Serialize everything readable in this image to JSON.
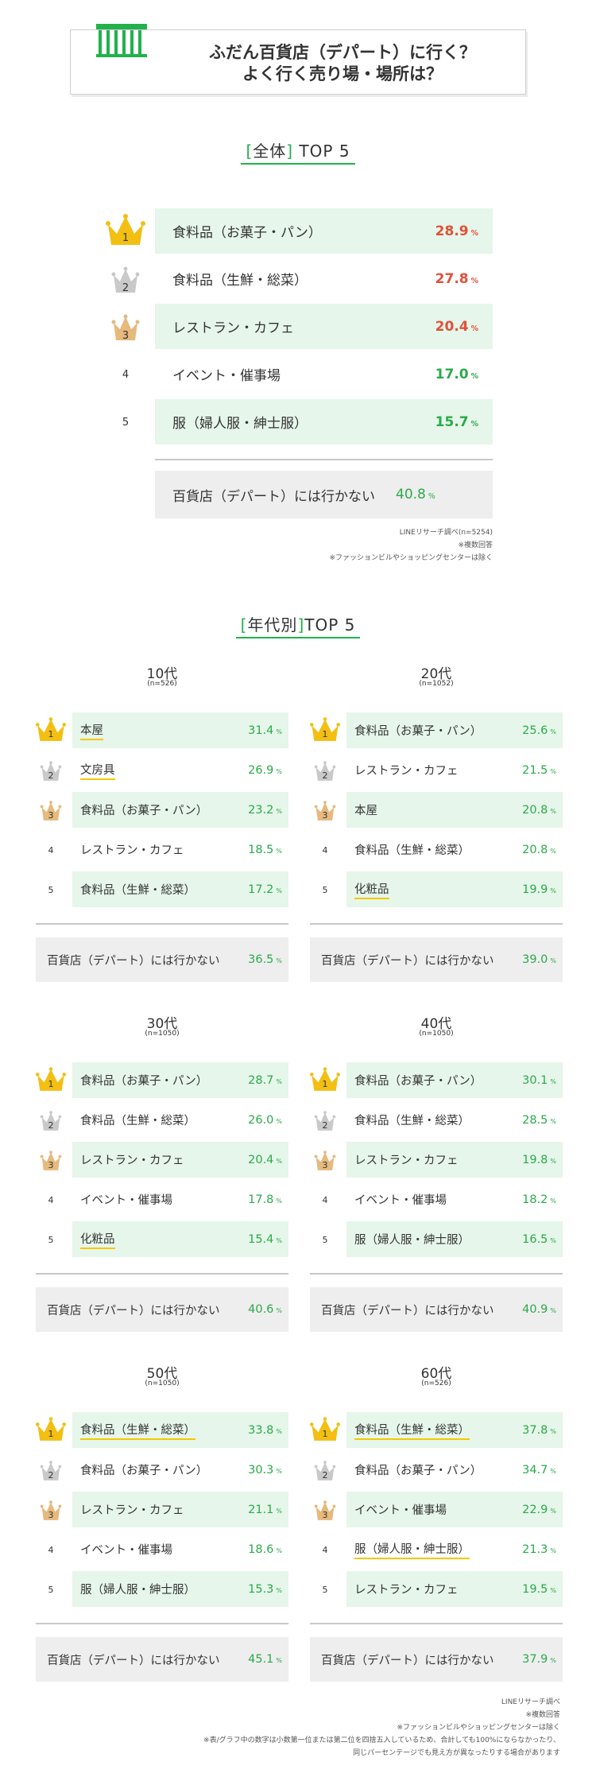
{
  "header": {
    "line1": "ふだん百貨店（デパート）に行く？",
    "line2": "よく行く売り場・場所は？"
  },
  "overall": {
    "bracket_left": "[",
    "heading": "全体",
    "bracket_right": "]",
    "suffix": " TOP 5",
    "rows": [
      {
        "rank": "1",
        "label": "食料品（お菓子・パン）",
        "value": "28.9",
        "unit": "%"
      },
      {
        "rank": "2",
        "label": "食料品（生鮮・総菜）",
        "value": "27.8",
        "unit": "%"
      },
      {
        "rank": "3",
        "label": "レストラン・カフェ",
        "value": "20.4",
        "unit": "%"
      },
      {
        "rank": "4",
        "label": "イベント・催事場",
        "value": "17.0",
        "unit": "%"
      },
      {
        "rank": "5",
        "label": "服（婦人服・紳士服）",
        "value": "15.7",
        "unit": "%"
      }
    ],
    "not_going": {
      "label": "百貨店（デパート）には行かない",
      "value": "40.8",
      "unit": "%"
    },
    "notes": [
      "LINEリサーチ調べ(n=5254)",
      "※複数回答",
      "※ファッションビルやショッピングセンターは除く"
    ]
  },
  "by_age": {
    "bracket_left": "[",
    "heading": "年代別",
    "bracket_right": "]",
    "suffix": "TOP 5",
    "groups": [
      {
        "title": "10代",
        "n": "(n=526)",
        "rows": [
          {
            "rank": "1",
            "label": "本屋",
            "value": "31.4",
            "unit": "%"
          },
          {
            "rank": "2",
            "label": "文房具",
            "value": "26.9",
            "unit": "%"
          },
          {
            "rank": "3",
            "label": "食料品（お菓子・パン）",
            "value": "23.2",
            "unit": "%"
          },
          {
            "rank": "4",
            "label": "レストラン・カフェ",
            "value": "18.5",
            "unit": "%"
          },
          {
            "rank": "5",
            "label": "食料品（生鮮・総菜）",
            "value": "17.2",
            "unit": "%"
          }
        ],
        "not_going": {
          "label": "百貨店（デパート）には行かない",
          "value": "36.5",
          "unit": "%"
        }
      },
      {
        "title": "20代",
        "n": "(n=1052)",
        "rows": [
          {
            "rank": "1",
            "label": "食料品（お菓子・パン）",
            "value": "25.6",
            "unit": "%"
          },
          {
            "rank": "2",
            "label": "レストラン・カフェ",
            "value": "21.5",
            "unit": "%"
          },
          {
            "rank": "3",
            "label": "本屋",
            "value": "20.8",
            "unit": "%"
          },
          {
            "rank": "4",
            "label": "食料品（生鮮・総菜）",
            "value": "20.8",
            "unit": "%"
          },
          {
            "rank": "5",
            "label": "化粧品",
            "value": "19.9",
            "unit": "%"
          }
        ],
        "not_going": {
          "label": "百貨店（デパート）には行かない",
          "value": "39.0",
          "unit": "%"
        }
      },
      {
        "title": "30代",
        "n": "(n=1050)",
        "rows": [
          {
            "rank": "1",
            "label": "食料品（お菓子・パン）",
            "value": "28.7",
            "unit": "%"
          },
          {
            "rank": "2",
            "label": "食料品（生鮮・総菜）",
            "value": "26.0",
            "unit": "%"
          },
          {
            "rank": "3",
            "label": "レストラン・カフェ",
            "value": "20.4",
            "unit": "%"
          },
          {
            "rank": "4",
            "label": "イベント・催事場",
            "value": "17.8",
            "unit": "%"
          },
          {
            "rank": "5",
            "label": "化粧品",
            "value": "15.4",
            "unit": "%"
          }
        ],
        "not_going": {
          "label": "百貨店（デパート）には行かない",
          "value": "40.6",
          "unit": "%"
        }
      },
      {
        "title": "40代",
        "n": "(n=1050)",
        "rows": [
          {
            "rank": "1",
            "label": "食料品（お菓子・パン）",
            "value": "30.1",
            "unit": "%"
          },
          {
            "rank": "2",
            "label": "食料品（生鮮・総菜）",
            "value": "28.5",
            "unit": "%"
          },
          {
            "rank": "3",
            "label": "レストラン・カフェ",
            "value": "19.8",
            "unit": "%"
          },
          {
            "rank": "4",
            "label": "イベント・催事場",
            "value": "18.2",
            "unit": "%"
          },
          {
            "rank": "5",
            "label": "服（婦人服・紳士服）",
            "value": "16.5",
            "unit": "%"
          }
        ],
        "not_going": {
          "label": "百貨店（デパート）には行かない",
          "value": "40.9",
          "unit": "%"
        }
      },
      {
        "title": "50代",
        "n": "(n=1050)",
        "rows": [
          {
            "rank": "1",
            "label": "食料品（生鮮・総菜）",
            "value": "33.8",
            "unit": "%"
          },
          {
            "rank": "2",
            "label": "食料品（お菓子・パン）",
            "value": "30.3",
            "unit": "%"
          },
          {
            "rank": "3",
            "label": "レストラン・カフェ",
            "value": "21.1",
            "unit": "%"
          },
          {
            "rank": "4",
            "label": "イベント・催事場",
            "value": "18.6",
            "unit": "%"
          },
          {
            "rank": "5",
            "label": "服（婦人服・紳士服）",
            "value": "15.3",
            "unit": "%"
          }
        ],
        "not_going": {
          "label": "百貨店（デパート）には行かない",
          "value": "45.1",
          "unit": "%"
        }
      },
      {
        "title": "60代",
        "n": "(n=526)",
        "rows": [
          {
            "rank": "1",
            "label": "食料品（生鮮・総菜）",
            "value": "37.8",
            "unit": "%"
          },
          {
            "rank": "2",
            "label": "食料品（お菓子・パン）",
            "value": "34.7",
            "unit": "%"
          },
          {
            "rank": "3",
            "label": "イベント・催事場",
            "value": "22.9",
            "unit": "%"
          },
          {
            "rank": "4",
            "label": "服（婦人服・紳士服）",
            "value": "21.3",
            "unit": "%"
          },
          {
            "rank": "5",
            "label": "レストラン・カフェ",
            "value": "19.5",
            "unit": "%"
          }
        ],
        "not_going": {
          "label": "百貨店（デパート）には行かない",
          "value": "37.9",
          "unit": "%"
        }
      }
    ],
    "notes": [
      "LINEリサーチ調べ",
      "※複数回答",
      "※ファッションビルやショッピングセンターは除く",
      "※表/グラフ中の数字は小数第一位または第二位を四捨五入しているため、合計しても100%にならなかったり、",
      "同じパーセンテージでも見え方が異なったりする場合があります"
    ]
  },
  "colors": {
    "accent_green": "#22b14c",
    "row_bg": "#e6f6ea",
    "top_red": "#e0513a",
    "gold": "#f2bf12",
    "silver": "#c9c9c9",
    "bronze": "#e6b97d"
  }
}
